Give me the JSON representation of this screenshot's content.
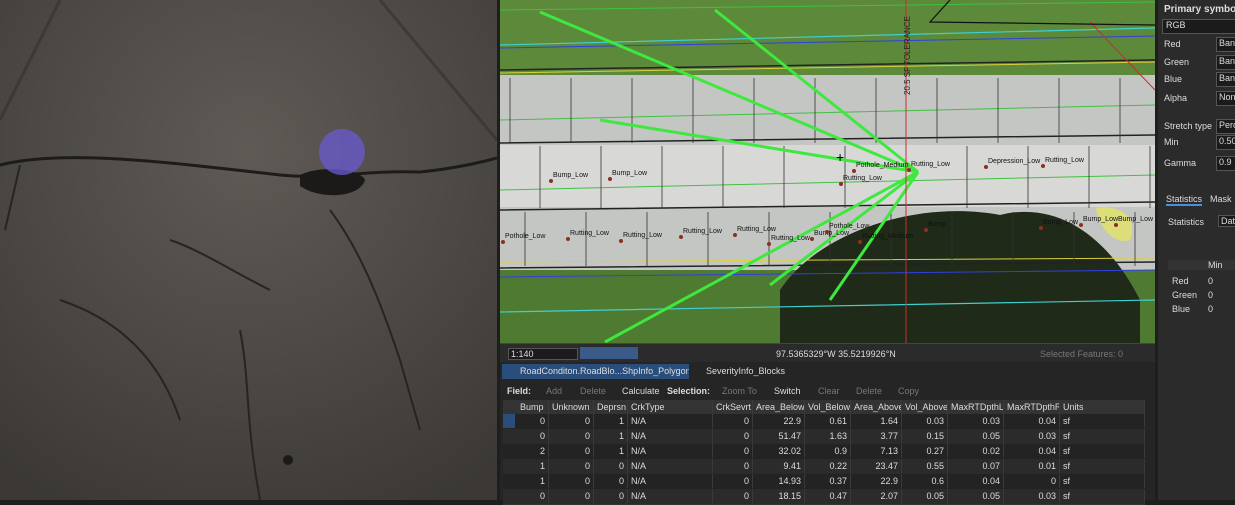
{
  "map": {
    "labels": [
      "Bump_Low",
      "Bump_Low",
      "Pothole_Medium",
      "Rutting_Low",
      "Rutting_Low",
      "Depression_Low",
      "Rutting_Low",
      "Pothole_Low",
      "Rutting_Low",
      "Rutting_Low",
      "Rutting_Low",
      "Rutting_Low",
      "Rutting_Low",
      "Bump_Low",
      "Pothole_Low",
      "Rutting_Medium",
      "Bump",
      "Bump_Low",
      "Bump_Low",
      "Bump_Low"
    ],
    "vertical_label": "20.5 SF TOLERANCE"
  },
  "status_bar": {
    "scale": "1:140",
    "coordinates": "97.5365329°W 35.5219926°N",
    "selected": "Selected Features: 0"
  },
  "tabs": [
    "RoadConditon.RoadBlo...ShpInfo_Polygon",
    "SeverityInfo_Blocks"
  ],
  "toolbar": {
    "field": "Field:",
    "add": "Add",
    "delete": "Delete",
    "calculate": "Calculate",
    "selection": "Selection:",
    "zoom_to": "Zoom To",
    "switch": "Switch",
    "clear": "Clear",
    "delete2": "Delete",
    "copy": "Copy"
  },
  "table": {
    "columns": [
      "Bump",
      "Unknown",
      "Deprsn",
      "CrkType",
      "CrkSevrt",
      "Area_Below",
      "Vol_Below",
      "Area_Above",
      "Vol_Above",
      "MaxRTDpthL",
      "MaxRTDpthR",
      "Units"
    ],
    "rows": [
      [
        "0",
        "0",
        "1",
        "N/A",
        "0",
        "22.9",
        "0.61",
        "1.64",
        "0.03",
        "0.03",
        "0.04",
        "sf"
      ],
      [
        "0",
        "0",
        "1",
        "N/A",
        "0",
        "51.47",
        "1.63",
        "3.77",
        "0.15",
        "0.05",
        "0.03",
        "sf"
      ],
      [
        "2",
        "0",
        "1",
        "N/A",
        "0",
        "32.02",
        "0.9",
        "7.13",
        "0.27",
        "0.02",
        "0.04",
        "sf"
      ],
      [
        "1",
        "0",
        "0",
        "N/A",
        "0",
        "9.41",
        "0.22",
        "23.47",
        "0.55",
        "0.07",
        "0.01",
        "sf"
      ],
      [
        "1",
        "0",
        "0",
        "N/A",
        "0",
        "14.93",
        "0.37",
        "22.9",
        "0.6",
        "0.04",
        "0",
        "sf"
      ],
      [
        "0",
        "0",
        "0",
        "N/A",
        "0",
        "18.15",
        "0.47",
        "2.07",
        "0.05",
        "0.05",
        "0.03",
        "sf"
      ]
    ]
  },
  "symbology": {
    "title": "Primary symbolo",
    "renderer": "RGB",
    "fields": [
      [
        "Red",
        "Band"
      ],
      [
        "Green",
        "Banc"
      ],
      [
        "Blue",
        "Banc"
      ],
      [
        "Alpha",
        "Non"
      ],
      [
        "Stretch type",
        "Perc"
      ],
      [
        "Min",
        "0.50"
      ],
      [
        "Gamma",
        "0.9"
      ]
    ],
    "tabs": [
      "Statistics",
      "Mask"
    ],
    "stats_label": "Statistics",
    "stats_value": "Dat",
    "stats_col": "Min",
    "stats_rows": [
      [
        "Red",
        "0"
      ],
      [
        "Green",
        "0"
      ],
      [
        "Blue",
        "0"
      ]
    ]
  }
}
